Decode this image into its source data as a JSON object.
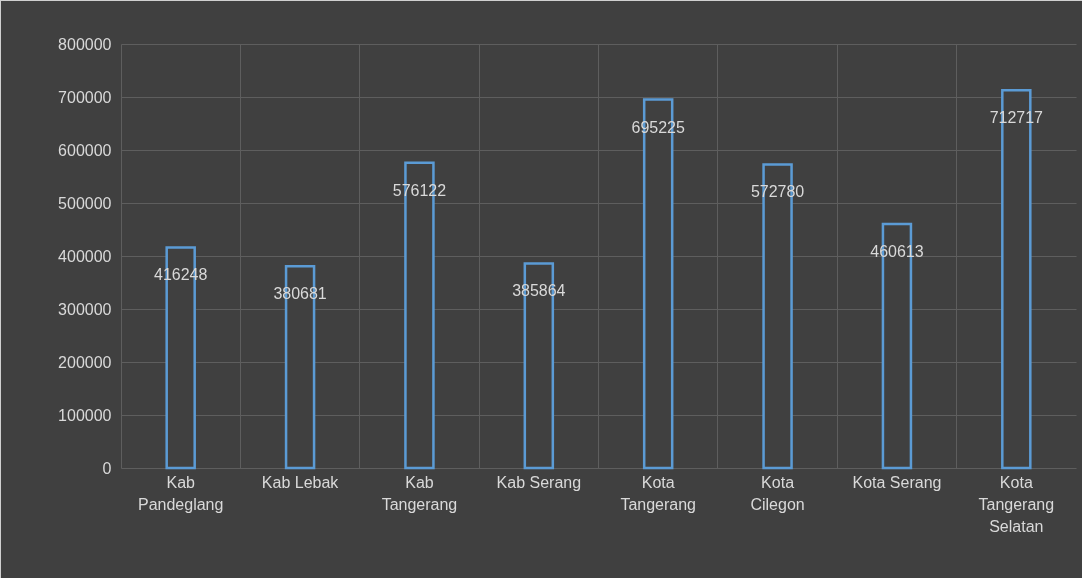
{
  "chart_data": {
    "type": "bar",
    "categories": [
      "Kab Pandeglang",
      "Kab Lebak",
      "Kab Tangerang",
      "Kab Serang",
      "Kota Tangerang",
      "Kota Cilegon",
      "Kota Serang",
      "Kota Tangerang Selatan"
    ],
    "values": [
      416248,
      380681,
      576122,
      385864,
      695225,
      572780,
      460613,
      712717
    ],
    "color": "#5b9bd5",
    "ylim": [
      0,
      800000
    ],
    "yticks": [
      0,
      100000,
      200000,
      300000,
      400000,
      500000,
      600000,
      700000,
      800000
    ],
    "grid": true,
    "data_labels": true
  }
}
